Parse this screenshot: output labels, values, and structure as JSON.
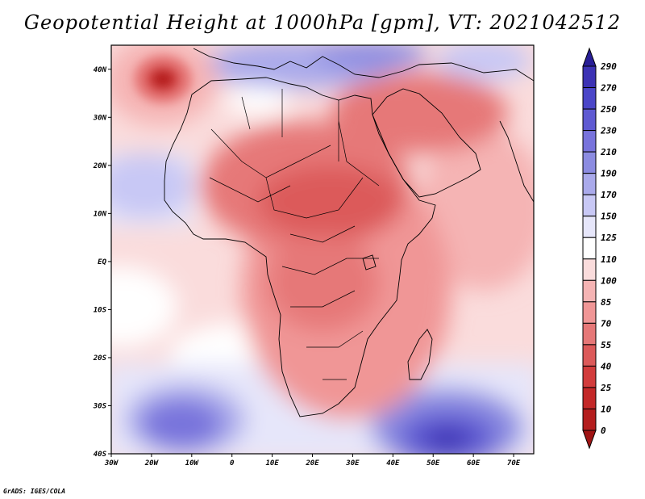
{
  "title": "Geopotential Height at 1000hPa [gpm], VT: 2021042512",
  "footer": "GrADS: IGES/COLA",
  "map": {
    "region": "Africa and Middle East",
    "variable": "Geopotential Height at 1000hPa",
    "units": "gpm",
    "valid_time": "2021042512",
    "lon_range": [
      -30,
      75
    ],
    "lat_range": [
      -40,
      45
    ],
    "lat_labels": [
      "40N",
      "30N",
      "20N",
      "10N",
      "EQ",
      "10S",
      "20S",
      "30S",
      "40S"
    ],
    "lon_labels": [
      "30W",
      "20W",
      "10W",
      "0",
      "10E",
      "20E",
      "30E",
      "40E",
      "50E",
      "60E",
      "70E"
    ]
  },
  "colorbar": {
    "levels": [
      "290",
      "270",
      "250",
      "230",
      "210",
      "190",
      "170",
      "150",
      "125",
      "110",
      "100",
      "85",
      "70",
      "55",
      "40",
      "25",
      "10",
      "0"
    ],
    "colors": [
      "#281e96",
      "#3c32b4",
      "#4b46c8",
      "#5f5ad2",
      "#7873dc",
      "#8c8ce1",
      "#aaaaeb",
      "#c8c8f5",
      "#e6e6fa",
      "#ffffff",
      "#fadcdc",
      "#f5b4b4",
      "#f09696",
      "#e67878",
      "#dc5a5a",
      "#d23c3c",
      "#c32828",
      "#b41e1e",
      "#a01414"
    ]
  }
}
